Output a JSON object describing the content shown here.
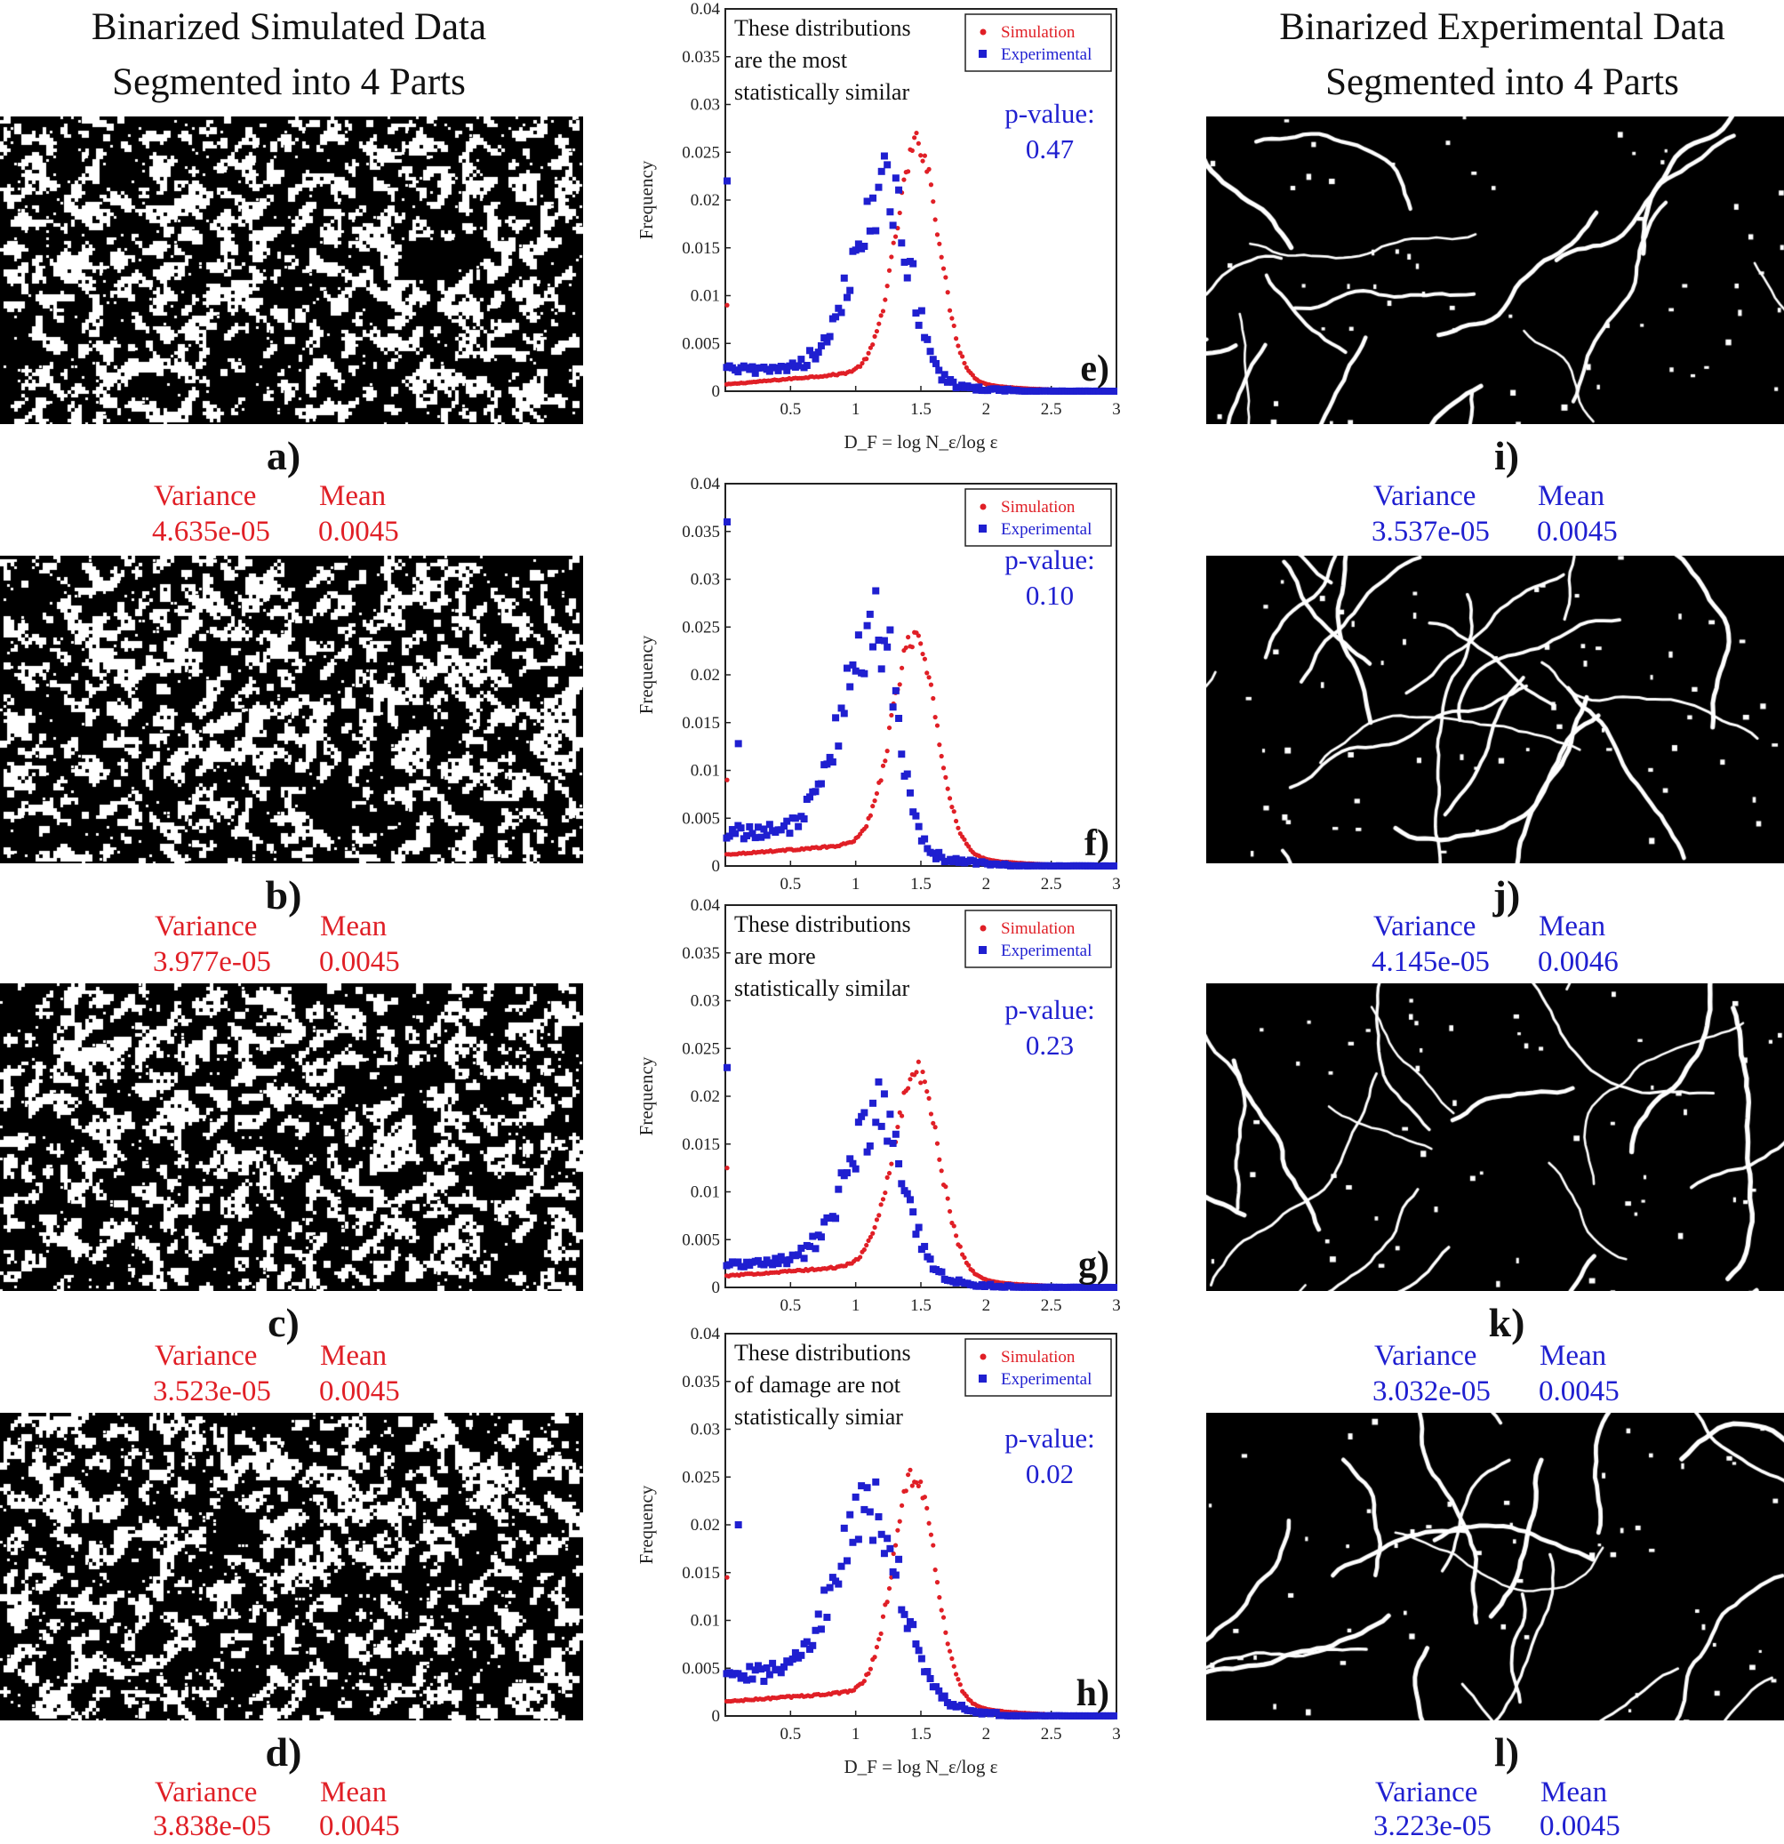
{
  "figure": {
    "left_heading": [
      "Binarized Simulated Data",
      "Segmented into 4 Parts"
    ],
    "right_heading": [
      "Binarized Experimental Data",
      "Segmented into 4 Parts"
    ],
    "stat_labels": {
      "variance": "Variance",
      "mean": "Mean"
    },
    "colors": {
      "simulation": "#e01f26",
      "experimental": "#1f1fd0",
      "text": "#111111"
    },
    "simulated_panels": [
      {
        "label": "a)",
        "variance": "4.635e-05",
        "mean": "0.0045"
      },
      {
        "label": "b)",
        "variance": "3.977e-05",
        "mean": "0.0045"
      },
      {
        "label": "c)",
        "variance": "3.523e-05",
        "mean": "0.0045"
      },
      {
        "label": "d)",
        "variance": "3.838e-05",
        "mean": "0.0045"
      }
    ],
    "experimental_panels": [
      {
        "label": "i)",
        "variance": "3.537e-05",
        "mean": "0.0045"
      },
      {
        "label": "j)",
        "variance": "4.145e-05",
        "mean": "0.0046"
      },
      {
        "label": "k)",
        "variance": "3.032e-05",
        "mean": "0.0045"
      },
      {
        "label": "l)",
        "variance": "3.223e-05",
        "mean": "0.0045"
      }
    ]
  },
  "chart_data": [
    {
      "type": "scatter",
      "panel_label": "e)",
      "xlabel": "D_F = log N_ε/log ε",
      "ylabel": "Frequency",
      "xlim": [
        0,
        3
      ],
      "ylim": [
        0,
        0.04
      ],
      "xticks": [
        "0.5",
        "1",
        "1.5",
        "2",
        "2.5",
        "3"
      ],
      "yticks": [
        "0",
        "0.005",
        "0.01",
        "0.015",
        "0.02",
        "0.025",
        "0.03",
        "0.035",
        "0.04"
      ],
      "legend": [
        "Simulation",
        "Experimental"
      ],
      "annotation": [
        "These distributions",
        "are the most",
        "statistically similar"
      ],
      "p_value_label": "p-value:",
      "p_value": "0.47",
      "series": [
        {
          "name": "Simulation",
          "marker": "dot",
          "peak_x": 1.48,
          "peak_y": 0.0235,
          "sigma_left": 0.17,
          "sigma_right": 0.16,
          "base": 0.0007,
          "base_slope": 0.0012,
          "outliers": [
            [
              0.0,
              0.009
            ]
          ]
        },
        {
          "name": "Experimental",
          "marker": "square",
          "peak_x": 1.25,
          "peak_y": 0.0185,
          "sigma_left": 0.26,
          "sigma_right": 0.17,
          "base": 0.0022,
          "base_slope": 0.0,
          "outliers": [
            [
              0.0,
              0.022
            ]
          ]
        }
      ]
    },
    {
      "type": "scatter",
      "panel_label": "f)",
      "xlabel": "",
      "ylabel": "Frequency",
      "xlim": [
        0,
        3
      ],
      "ylim": [
        0,
        0.04
      ],
      "xticks": [
        "0.5",
        "1",
        "1.5",
        "2",
        "2.5",
        "3"
      ],
      "yticks": [
        "0",
        "0.005",
        "0.01",
        "0.015",
        "0.02",
        "0.025",
        "0.03",
        "0.035",
        "0.04"
      ],
      "legend": [
        "Simulation",
        "Experimental"
      ],
      "annotation": [],
      "p_value_label": "p-value:",
      "p_value": "0.10",
      "series": [
        {
          "name": "Simulation",
          "marker": "dot",
          "peak_x": 1.45,
          "peak_y": 0.0215,
          "sigma_left": 0.17,
          "sigma_right": 0.17,
          "base": 0.0012,
          "base_slope": 0.001,
          "outliers": [
            [
              0.0,
              0.009
            ]
          ]
        },
        {
          "name": "Experimental",
          "marker": "square",
          "peak_x": 1.17,
          "peak_y": 0.0225,
          "sigma_left": 0.26,
          "sigma_right": 0.15,
          "base": 0.0035,
          "base_slope": 0.0,
          "outliers": [
            [
              0.0,
              0.036
            ],
            [
              0.1,
              0.0128
            ]
          ]
        }
      ]
    },
    {
      "type": "scatter",
      "panel_label": "g)",
      "xlabel": "",
      "ylabel": "Frequency",
      "xlim": [
        0,
        3
      ],
      "ylim": [
        0,
        0.04
      ],
      "xticks": [
        "0.5",
        "1",
        "1.5",
        "2",
        "2.5",
        "3"
      ],
      "yticks": [
        "0",
        "0.005",
        "0.01",
        "0.015",
        "0.02",
        "0.025",
        "0.03",
        "0.035",
        "0.04"
      ],
      "legend": [
        "Simulation",
        "Experimental"
      ],
      "annotation": [
        "These distributions",
        "are more",
        "statistically similar"
      ],
      "p_value_label": "p-value:",
      "p_value": "0.23",
      "series": [
        {
          "name": "Simulation",
          "marker": "dot",
          "peak_x": 1.47,
          "peak_y": 0.02,
          "sigma_left": 0.18,
          "sigma_right": 0.17,
          "base": 0.0012,
          "base_slope": 0.001,
          "outliers": [
            [
              0.0,
              0.0125
            ]
          ]
        },
        {
          "name": "Experimental",
          "marker": "square",
          "peak_x": 1.2,
          "peak_y": 0.016,
          "sigma_left": 0.26,
          "sigma_right": 0.18,
          "base": 0.0025,
          "base_slope": 0.0,
          "outliers": [
            [
              0.0,
              0.023
            ]
          ]
        }
      ]
    },
    {
      "type": "scatter",
      "panel_label": "h)",
      "xlabel": "D_F = log N_ε/log ε",
      "ylabel": "Frequency",
      "xlim": [
        0,
        3
      ],
      "ylim": [
        0,
        0.04
      ],
      "xticks": [
        "0.5",
        "1",
        "1.5",
        "2",
        "2.5",
        "3"
      ],
      "yticks": [
        "0",
        "0.005",
        "0.01",
        "0.015",
        "0.02",
        "0.025",
        "0.03",
        "0.035",
        "0.04"
      ],
      "legend": [
        "Simulation",
        "Experimental"
      ],
      "annotation": [
        "These distributions",
        "of damage are not",
        "statistically simiar"
      ],
      "p_value_label": "p-value:",
      "p_value": "0.02",
      "series": [
        {
          "name": "Simulation",
          "marker": "dot",
          "peak_x": 1.45,
          "peak_y": 0.0225,
          "sigma_left": 0.16,
          "sigma_right": 0.16,
          "base": 0.0015,
          "base_slope": 0.001,
          "outliers": [
            [
              0.0,
              0.0145
            ]
          ]
        },
        {
          "name": "Experimental",
          "marker": "square",
          "peak_x": 1.1,
          "peak_y": 0.018,
          "sigma_left": 0.24,
          "sigma_right": 0.25,
          "base": 0.0045,
          "base_slope": 0.0,
          "outliers": [
            [
              0.1,
              0.02
            ]
          ]
        }
      ]
    }
  ]
}
